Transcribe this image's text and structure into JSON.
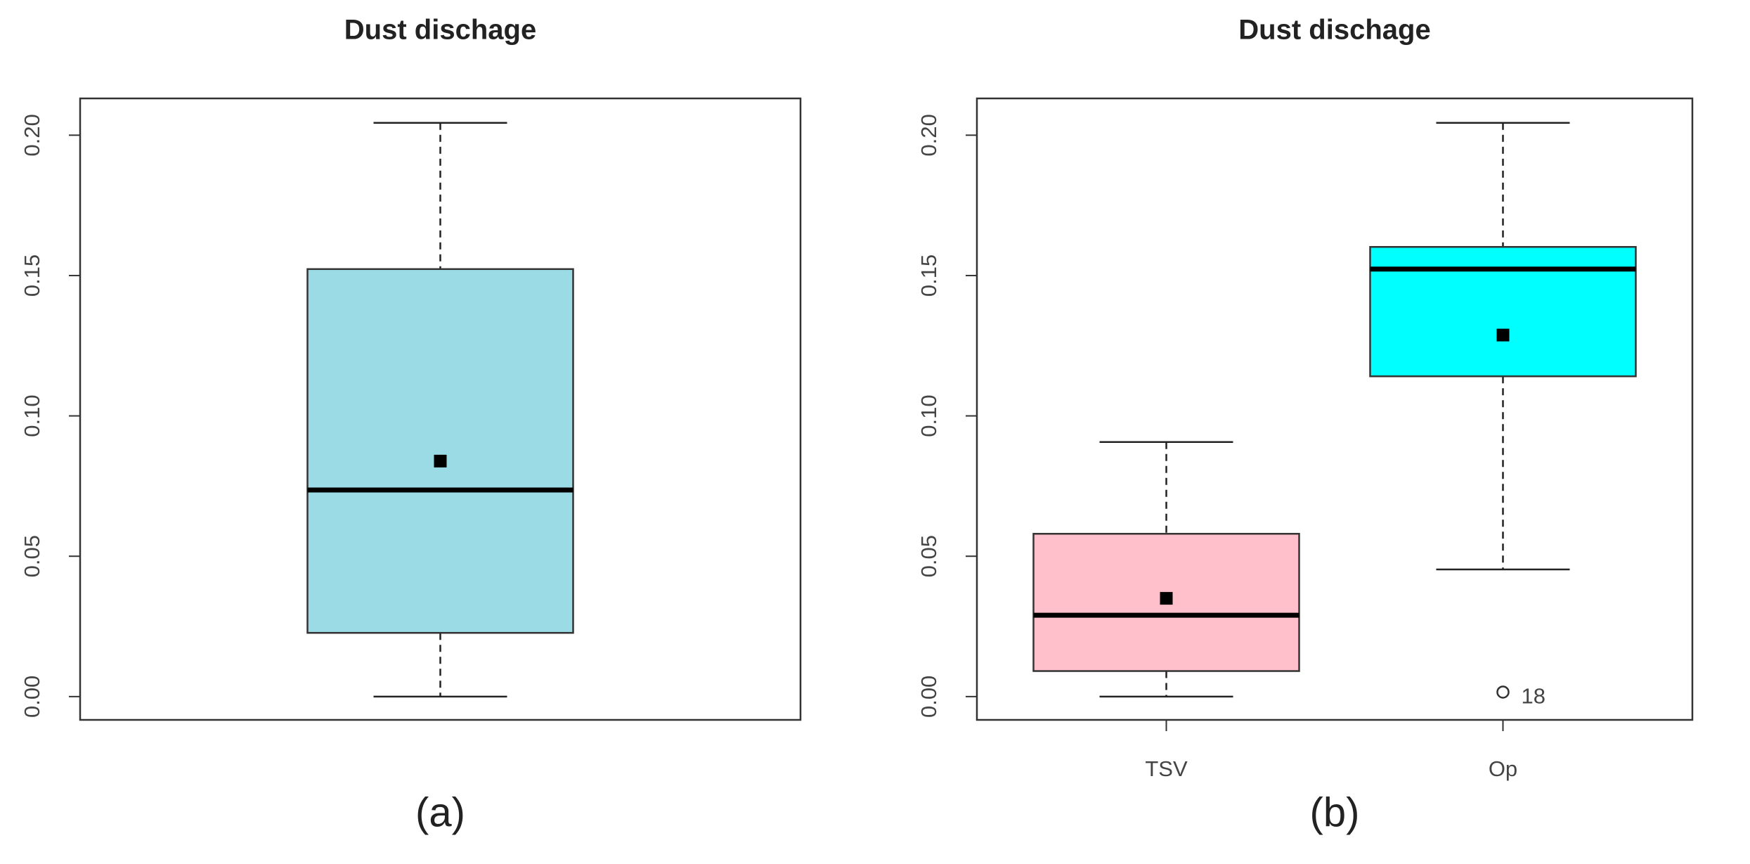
{
  "chart_data": [
    {
      "type": "box",
      "title": "Dust dischage",
      "caption": "(a)",
      "ylim": [
        -0.0083,
        0.2131
      ],
      "yticks": [
        {
          "value": 0,
          "label": "0.00"
        },
        {
          "value": 0.05,
          "label": "0.05"
        },
        {
          "value": 0.1,
          "label": "0.10"
        },
        {
          "value": 0.15,
          "label": "0.15"
        },
        {
          "value": 0.2,
          "label": "0.20"
        }
      ],
      "boxes": [
        {
          "color": "#9adbe6",
          "min": 0,
          "q1": 0.0227,
          "median": 0.0736,
          "q3": 0.1523,
          "max": 0.2044,
          "mean": 0.0839
        }
      ]
    },
    {
      "type": "box",
      "title": "Dust dischage",
      "caption": "(b)",
      "ylim": [
        -0.0083,
        0.2131
      ],
      "yticks": [
        {
          "value": 0,
          "label": "0.00"
        },
        {
          "value": 0.05,
          "label": "0.05"
        },
        {
          "value": 0.1,
          "label": "0.10"
        },
        {
          "value": 0.15,
          "label": "0.15"
        },
        {
          "value": 0.2,
          "label": "0.20"
        }
      ],
      "categories": [
        "TSV",
        "Op"
      ],
      "boxes": [
        {
          "color": "#ffc0cb",
          "min": 0,
          "q1": 0.0091,
          "median": 0.029,
          "q3": 0.058,
          "max": 0.0907,
          "mean": 0.035
        },
        {
          "color": "#00ffff",
          "min": 0.0453,
          "q1": 0.1141,
          "median": 0.1523,
          "q3": 0.1602,
          "max": 0.2044,
          "mean": 0.1288,
          "outliers": [
            {
              "value": 0.0016,
              "label": "18"
            }
          ]
        }
      ]
    }
  ]
}
